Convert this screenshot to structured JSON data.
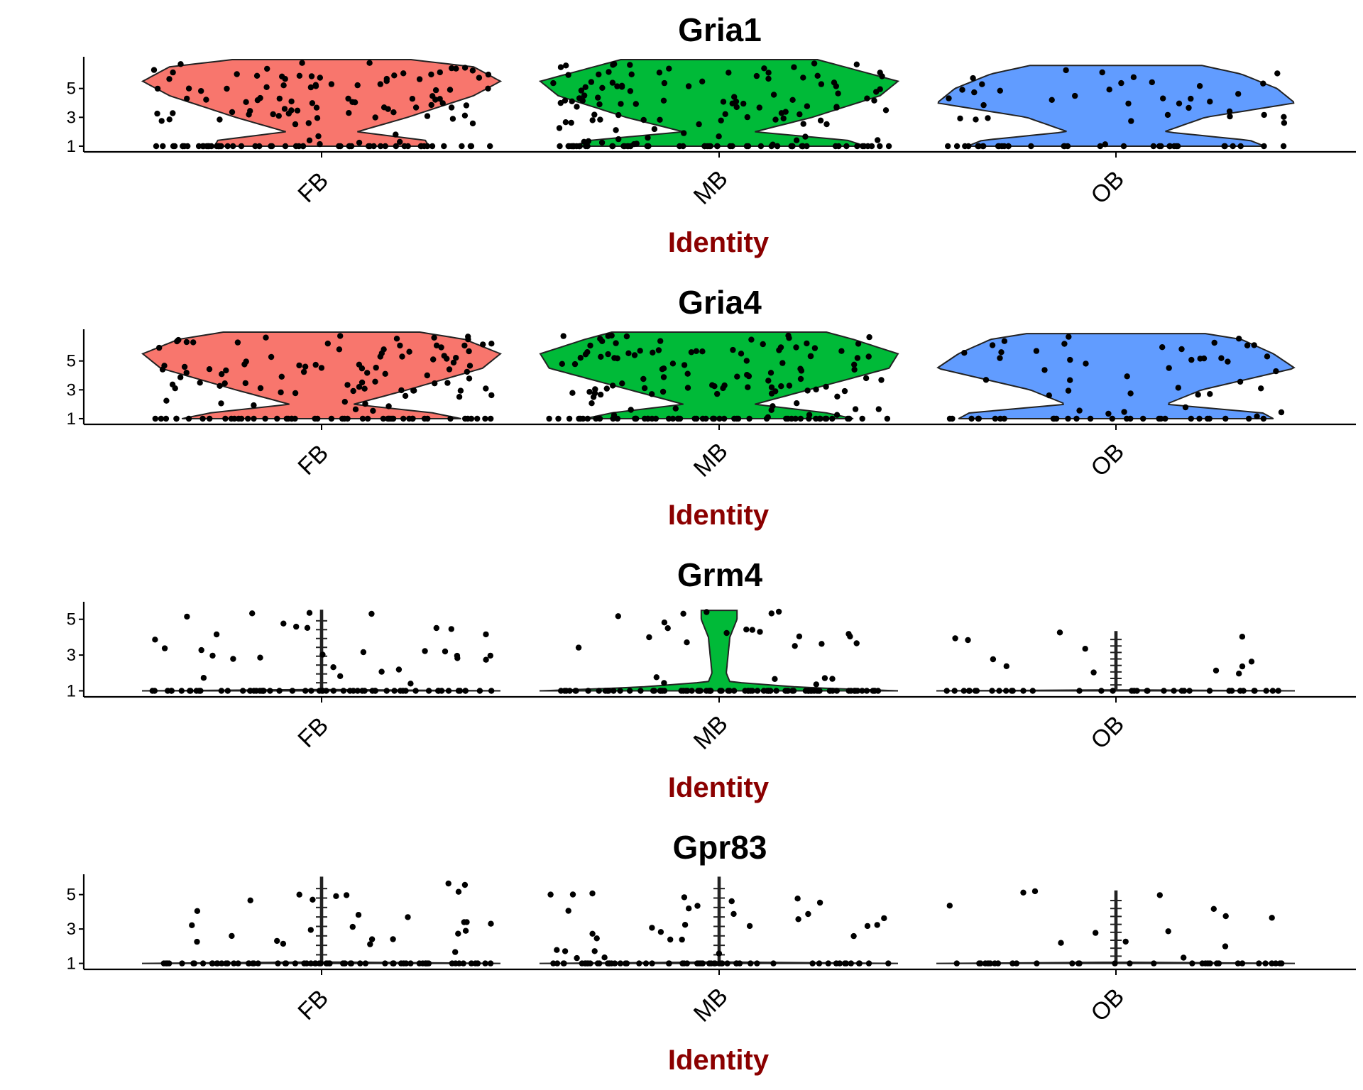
{
  "chart_data": [
    {
      "type": "violin",
      "title": "Gria1",
      "xlabel": "Identity",
      "ylabel": "",
      "categories": [
        "FB",
        "MB",
        "OB"
      ],
      "y_ticks": [
        1,
        3,
        5
      ],
      "ylim": [
        0.9,
        7.1
      ],
      "colors": {
        "FB": "#F8766D",
        "MB": "#00BA38",
        "OB": "#619CFF",
        "xlabel": "#8B0000"
      },
      "violin_profile": {
        "FB": [
          [
            1,
            0.6
          ],
          [
            1.4,
            0.58
          ],
          [
            2,
            0.2
          ],
          [
            3,
            0.48
          ],
          [
            4.5,
            0.85
          ],
          [
            5.5,
            1
          ],
          [
            6.5,
            0.85
          ],
          [
            7,
            0.5
          ]
        ],
        "MB": [
          [
            1,
            0.82
          ],
          [
            1.4,
            0.72
          ],
          [
            2,
            0.2
          ],
          [
            3,
            0.52
          ],
          [
            4.5,
            0.9
          ],
          [
            5.5,
            1
          ],
          [
            6.5,
            0.7
          ],
          [
            7,
            0.55
          ]
        ],
        "OB": [
          [
            1,
            0.83
          ],
          [
            1.4,
            0.75
          ],
          [
            2,
            0.27
          ],
          [
            3,
            0.5
          ],
          [
            4,
            1
          ],
          [
            5,
            0.9
          ],
          [
            6,
            0.7
          ],
          [
            6.6,
            0.48
          ]
        ]
      },
      "points": {
        "FB": 150,
        "MB": 160,
        "OB": 70
      }
    },
    {
      "type": "violin",
      "title": "Gria4",
      "xlabel": "Identity",
      "ylabel": "",
      "categories": [
        "FB",
        "MB",
        "OB"
      ],
      "y_ticks": [
        1,
        3,
        5
      ],
      "ylim": [
        0.9,
        7.1
      ],
      "colors": {
        "FB": "#F8766D",
        "MB": "#00BA38",
        "OB": "#619CFF",
        "xlabel": "#8B0000"
      },
      "violin_profile": {
        "FB": [
          [
            1,
            0.78
          ],
          [
            1.4,
            0.62
          ],
          [
            2,
            0.18
          ],
          [
            3,
            0.48
          ],
          [
            4.5,
            0.9
          ],
          [
            5.5,
            1
          ],
          [
            6.5,
            0.8
          ],
          [
            7,
            0.55
          ]
        ],
        "MB": [
          [
            1,
            0.75
          ],
          [
            1.4,
            0.6
          ],
          [
            2,
            0.2
          ],
          [
            3,
            0.5
          ],
          [
            4.5,
            0.95
          ],
          [
            5.5,
            1
          ],
          [
            6.5,
            0.75
          ],
          [
            7,
            0.6
          ]
        ],
        "OB": [
          [
            1,
            0.88
          ],
          [
            1.4,
            0.82
          ],
          [
            2,
            0.28
          ],
          [
            3,
            0.48
          ],
          [
            4.5,
            1
          ],
          [
            5.5,
            0.88
          ],
          [
            6.5,
            0.7
          ],
          [
            6.9,
            0.5
          ]
        ]
      },
      "points": {
        "FB": 140,
        "MB": 160,
        "OB": 70
      }
    },
    {
      "type": "violin",
      "title": "Grm4",
      "xlabel": "Identity",
      "ylabel": "",
      "categories": [
        "FB",
        "MB",
        "OB"
      ],
      "y_ticks": [
        1,
        3,
        5
      ],
      "ylim": [
        0.9,
        5.9
      ],
      "colors": {
        "FB": "#F8766D",
        "MB": "#00BA38",
        "OB": "#619CFF",
        "xlabel": "#8B0000"
      },
      "violin_profile": {
        "FB": [
          [
            1,
            1
          ],
          [
            1.05,
            0.005
          ],
          [
            5.5,
            0.005
          ]
        ],
        "MB": [
          [
            1,
            1
          ],
          [
            1.2,
            0.45
          ],
          [
            1.5,
            0.06
          ],
          [
            2,
            0.04
          ],
          [
            3,
            0.05
          ],
          [
            4,
            0.06
          ],
          [
            5,
            0.1
          ],
          [
            5.5,
            0.1
          ]
        ],
        "OB": [
          [
            1,
            1
          ],
          [
            1.05,
            0.005
          ],
          [
            4.3,
            0.005
          ]
        ]
      },
      "points": {
        "FB": 90,
        "MB": 110,
        "OB": 50
      }
    },
    {
      "type": "violin",
      "title": "Gpr83",
      "xlabel": "Identity",
      "ylabel": "",
      "categories": [
        "FB",
        "MB",
        "OB"
      ],
      "y_ticks": [
        1,
        3,
        5
      ],
      "ylim": [
        0.9,
        6.1
      ],
      "colors": {
        "FB": "#F8766D",
        "MB": "#00BA38",
        "OB": "#619CFF",
        "xlabel": "#8B0000"
      },
      "violin_profile": {
        "FB": [
          [
            1,
            1
          ],
          [
            1.05,
            0.005
          ],
          [
            6,
            0.005
          ]
        ],
        "MB": [
          [
            1,
            1
          ],
          [
            1.05,
            0.005
          ],
          [
            6,
            0.005
          ]
        ],
        "OB": [
          [
            1,
            1
          ],
          [
            1.05,
            0.005
          ],
          [
            5.2,
            0.005
          ]
        ]
      },
      "points": {
        "FB": 95,
        "MB": 90,
        "OB": 45
      }
    }
  ]
}
